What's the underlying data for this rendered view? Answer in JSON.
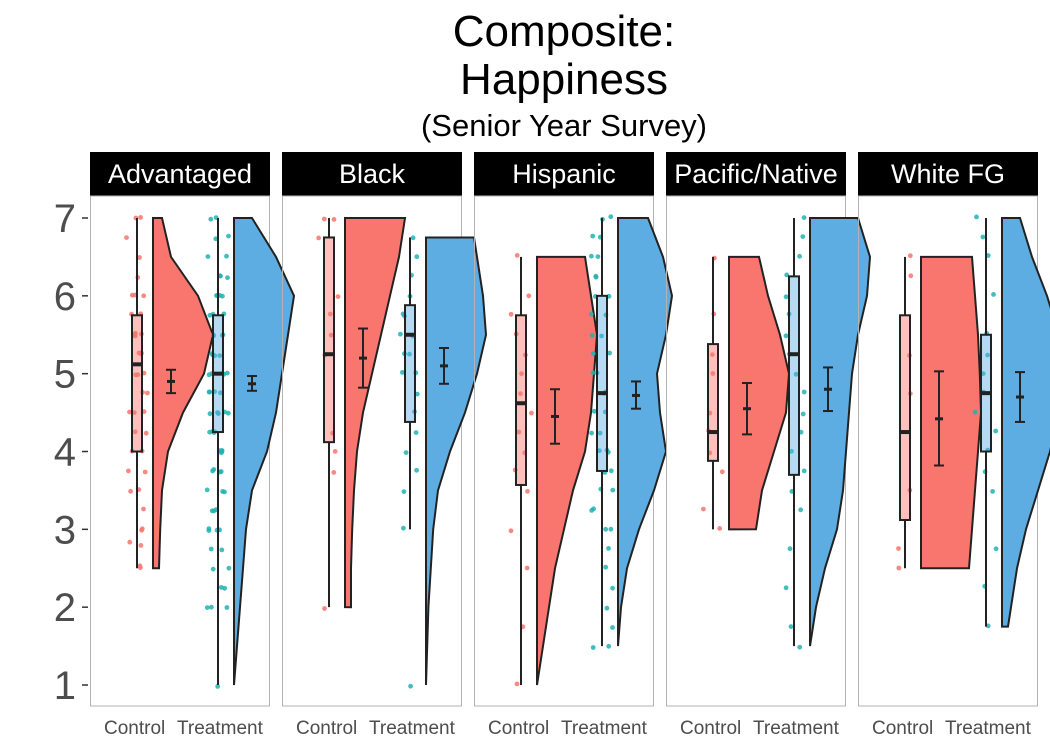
{
  "chart_data": {
    "type": "raincloud",
    "title_lines": [
      "Composite:",
      "Happiness",
      "(Senior Year Survey)"
    ],
    "ylim": [
      1,
      7
    ],
    "y_ticks": [
      1,
      2,
      3,
      4,
      5,
      6,
      7
    ],
    "x_categories": [
      "Control",
      "Treatment"
    ],
    "grid": false,
    "colors": {
      "Control": "#F8766D",
      "Treatment": "#5DADE2",
      "Control_points": "#F8766D",
      "Treatment_points": "#22B2B2",
      "strip": "#000000",
      "panel_border": "#b3b3b3",
      "line": "#222222"
    },
    "panels": [
      {
        "label": "Advantaged",
        "groups": [
          {
            "group": "Control",
            "min": 2.5,
            "q1": 4.0,
            "median": 5.12,
            "q3": 5.75,
            "max": 7.0,
            "mean": 4.9,
            "ci": [
              4.75,
              5.05
            ],
            "density": [
              [
                2.5,
                0.1
              ],
              [
                3.0,
                0.12
              ],
              [
                3.5,
                0.15
              ],
              [
                4.0,
                0.25
              ],
              [
                4.5,
                0.5
              ],
              [
                5.0,
                0.85
              ],
              [
                5.5,
                1.0
              ],
              [
                6.0,
                0.75
              ],
              [
                6.5,
                0.3
              ],
              [
                7.0,
                0.15
              ]
            ],
            "points": [
              2.5,
              2.55,
              2.8,
              2.85,
              3.0,
              3.0,
              3.25,
              3.5,
              3.5,
              3.75,
              3.75,
              4.0,
              4.0,
              4.25,
              4.25,
              4.5,
              4.5,
              4.5,
              4.75,
              4.75,
              5.0,
              5.0,
              5.0,
              5.25,
              5.25,
              5.25,
              5.5,
              5.5,
              5.5,
              5.5,
              5.75,
              5.75,
              6.0,
              6.0,
              6.0,
              6.25,
              6.5,
              6.75,
              7.0,
              7.0
            ]
          },
          {
            "group": "Treatment",
            "min": 1.0,
            "q1": 4.25,
            "median": 5.0,
            "q3": 5.75,
            "max": 7.0,
            "mean": 4.87,
            "ci": [
              4.78,
              4.97
            ],
            "density": [
              [
                1.0,
                0.0
              ],
              [
                1.5,
                0.05
              ],
              [
                2.0,
                0.1
              ],
              [
                2.5,
                0.15
              ],
              [
                3.0,
                0.2
              ],
              [
                3.5,
                0.3
              ],
              [
                4.0,
                0.55
              ],
              [
                4.5,
                0.7
              ],
              [
                5.0,
                0.8
              ],
              [
                5.5,
                0.9
              ],
              [
                6.0,
                1.0
              ],
              [
                6.5,
                0.7
              ],
              [
                7.0,
                0.3
              ]
            ],
            "points": [
              1.0,
              2.0,
              2.0,
              2.0,
              2.25,
              2.25,
              2.5,
              2.5,
              2.75,
              2.75,
              3.0,
              3.0,
              3.0,
              3.0,
              3.25,
              3.25,
              3.25,
              3.5,
              3.5,
              3.5,
              3.75,
              3.75,
              3.75,
              3.75,
              4.0,
              4.0,
              4.0,
              4.0,
              4.0,
              4.25,
              4.25,
              4.25,
              4.25,
              4.5,
              4.5,
              4.5,
              4.5,
              4.5,
              4.75,
              4.75,
              4.75,
              4.75,
              5.0,
              5.0,
              5.0,
              5.0,
              5.0,
              5.25,
              5.25,
              5.25,
              5.25,
              5.5,
              5.5,
              5.5,
              5.5,
              5.75,
              5.75,
              5.75,
              6.0,
              6.0,
              6.0,
              6.0,
              6.25,
              6.25,
              6.25,
              6.5,
              6.5,
              6.75,
              6.75,
              7.0,
              7.0
            ]
          }
        ]
      },
      {
        "label": "Black",
        "groups": [
          {
            "group": "Control",
            "min": 2.0,
            "q1": 4.12,
            "median": 5.25,
            "q3": 6.75,
            "max": 7.0,
            "mean": 5.2,
            "ci": [
              4.82,
              5.58
            ],
            "density": [
              [
                2.0,
                0.1
              ],
              [
                2.5,
                0.1
              ],
              [
                3.0,
                0.12
              ],
              [
                3.5,
                0.15
              ],
              [
                4.0,
                0.2
              ],
              [
                4.5,
                0.3
              ],
              [
                5.0,
                0.45
              ],
              [
                5.5,
                0.6
              ],
              [
                6.0,
                0.75
              ],
              [
                6.5,
                0.9
              ],
              [
                7.0,
                1.0
              ]
            ],
            "points": [
              2.0,
              3.75,
              4.0,
              4.25,
              5.25,
              5.5,
              5.75,
              6.0,
              6.75,
              7.0,
              7.0
            ]
          },
          {
            "group": "Treatment",
            "min": 3.0,
            "q1": 4.38,
            "median": 5.5,
            "q3": 5.88,
            "max": 6.75,
            "mean": 5.1,
            "ci": [
              4.87,
              5.33
            ],
            "density": [
              [
                1.0,
                0.0
              ],
              [
                1.5,
                0.02
              ],
              [
                2.0,
                0.04
              ],
              [
                2.5,
                0.08
              ],
              [
                3.0,
                0.12
              ],
              [
                3.5,
                0.2
              ],
              [
                4.0,
                0.4
              ],
              [
                4.5,
                0.65
              ],
              [
                5.0,
                0.85
              ],
              [
                5.5,
                1.0
              ],
              [
                6.0,
                0.95
              ],
              [
                6.5,
                0.85
              ],
              [
                6.75,
                0.8
              ]
            ],
            "points": [
              1.0,
              3.0,
              3.5,
              3.75,
              4.0,
              4.25,
              4.5,
              4.75,
              5.0,
              5.0,
              5.25,
              5.25,
              5.5,
              5.5,
              5.75,
              5.75,
              6.0,
              6.25,
              6.5,
              6.75
            ]
          }
        ]
      },
      {
        "label": "Hispanic",
        "groups": [
          {
            "group": "Control",
            "min": 1.0,
            "q1": 3.57,
            "median": 4.62,
            "q3": 5.75,
            "max": 6.5,
            "mean": 4.45,
            "ci": [
              4.1,
              4.8
            ],
            "density": [
              [
                1.0,
                0.0
              ],
              [
                1.5,
                0.1
              ],
              [
                2.0,
                0.2
              ],
              [
                2.5,
                0.3
              ],
              [
                3.0,
                0.45
              ],
              [
                3.5,
                0.6
              ],
              [
                4.0,
                0.8
              ],
              [
                4.5,
                0.9
              ],
              [
                5.0,
                0.95
              ],
              [
                5.5,
                1.0
              ],
              [
                6.0,
                0.9
              ],
              [
                6.5,
                0.8
              ]
            ],
            "points": [
              1.0,
              1.75,
              2.5,
              3.0,
              3.5,
              3.75,
              4.0,
              4.25,
              4.5,
              4.75,
              5.0,
              5.25,
              5.5,
              5.75,
              6.0,
              6.5
            ]
          },
          {
            "group": "Treatment",
            "min": 1.5,
            "q1": 3.75,
            "median": 4.75,
            "q3": 6.0,
            "max": 7.0,
            "mean": 4.72,
            "ci": [
              4.55,
              4.9
            ],
            "density": [
              [
                1.5,
                0.0
              ],
              [
                2.0,
                0.05
              ],
              [
                2.5,
                0.15
              ],
              [
                3.0,
                0.35
              ],
              [
                3.5,
                0.6
              ],
              [
                4.0,
                0.8
              ],
              [
                4.5,
                0.7
              ],
              [
                5.0,
                0.65
              ],
              [
                5.5,
                0.8
              ],
              [
                6.0,
                0.9
              ],
              [
                6.5,
                0.75
              ],
              [
                7.0,
                0.5
              ]
            ],
            "points": [
              1.5,
              1.5,
              1.75,
              2.0,
              2.25,
              2.5,
              2.75,
              3.0,
              3.0,
              3.25,
              3.25,
              3.5,
              3.5,
              3.75,
              3.75,
              4.0,
              4.0,
              4.0,
              4.25,
              4.25,
              4.5,
              4.5,
              4.75,
              4.75,
              5.0,
              5.0,
              5.25,
              5.25,
              5.5,
              5.5,
              5.75,
              5.75,
              6.0,
              6.0,
              6.25,
              6.25,
              6.5,
              6.5,
              6.75,
              6.75,
              7.0,
              7.0
            ]
          }
        ]
      },
      {
        "label": "Pacific/Native",
        "groups": [
          {
            "group": "Control",
            "min": 3.0,
            "q1": 3.88,
            "median": 4.25,
            "q3": 5.38,
            "max": 6.5,
            "mean": 4.55,
            "ci": [
              4.22,
              4.88
            ],
            "density": [
              [
                3.0,
                0.45
              ],
              [
                3.5,
                0.55
              ],
              [
                4.0,
                0.75
              ],
              [
                4.5,
                0.95
              ],
              [
                5.0,
                1.0
              ],
              [
                5.5,
                0.85
              ],
              [
                6.0,
                0.65
              ],
              [
                6.5,
                0.5
              ]
            ],
            "points": [
              3.0,
              3.25,
              3.75,
              4.0,
              4.25,
              4.5,
              5.0,
              5.25,
              5.75,
              6.5
            ]
          },
          {
            "group": "Treatment",
            "min": 1.5,
            "q1": 3.7,
            "median": 5.25,
            "q3": 6.25,
            "max": 7.0,
            "mean": 4.8,
            "ci": [
              4.52,
              5.08
            ],
            "density": [
              [
                1.5,
                0.0
              ],
              [
                2.0,
                0.1
              ],
              [
                2.5,
                0.25
              ],
              [
                3.0,
                0.45
              ],
              [
                3.5,
                0.55
              ],
              [
                4.0,
                0.6
              ],
              [
                4.5,
                0.65
              ],
              [
                5.0,
                0.7
              ],
              [
                5.5,
                0.8
              ],
              [
                6.0,
                0.95
              ],
              [
                6.5,
                1.0
              ],
              [
                7.0,
                0.8
              ]
            ],
            "points": [
              1.5,
              1.75,
              2.25,
              2.75,
              3.25,
              3.5,
              3.75,
              4.0,
              4.25,
              4.5,
              4.75,
              5.0,
              5.25,
              5.5,
              5.75,
              6.0,
              6.25,
              6.5,
              6.75,
              7.0
            ]
          }
        ]
      },
      {
        "label": "White FG",
        "groups": [
          {
            "group": "Control",
            "min": 2.5,
            "q1": 3.12,
            "median": 4.25,
            "q3": 5.75,
            "max": 6.5,
            "mean": 4.42,
            "ci": [
              3.82,
              5.03
            ],
            "density": [
              [
                2.5,
                0.8
              ],
              [
                3.0,
                0.85
              ],
              [
                3.5,
                0.9
              ],
              [
                4.0,
                0.95
              ],
              [
                4.5,
                1.0
              ],
              [
                5.0,
                0.98
              ],
              [
                5.5,
                0.95
              ],
              [
                6.0,
                0.9
              ],
              [
                6.5,
                0.85
              ]
            ],
            "points": [
              2.5,
              2.75,
              3.5,
              4.75,
              5.25,
              6.25,
              6.5
            ]
          },
          {
            "group": "Treatment",
            "min": 1.75,
            "q1": 4.0,
            "median": 4.75,
            "q3": 5.5,
            "max": 7.0,
            "mean": 4.7,
            "ci": [
              4.38,
              5.02
            ],
            "density": [
              [
                1.75,
                0.1
              ],
              [
                2.0,
                0.15
              ],
              [
                2.5,
                0.25
              ],
              [
                3.0,
                0.4
              ],
              [
                3.5,
                0.6
              ],
              [
                4.0,
                0.8
              ],
              [
                4.5,
                0.95
              ],
              [
                5.0,
                1.0
              ],
              [
                5.5,
                0.95
              ],
              [
                6.0,
                0.75
              ],
              [
                6.5,
                0.5
              ],
              [
                7.0,
                0.3
              ]
            ],
            "points": [
              1.75,
              2.25,
              2.75,
              3.5,
              3.75,
              4.0,
              4.25,
              4.5,
              4.75,
              5.0,
              5.25,
              5.5,
              6.0,
              6.5,
              6.75,
              7.0
            ]
          }
        ]
      }
    ]
  }
}
